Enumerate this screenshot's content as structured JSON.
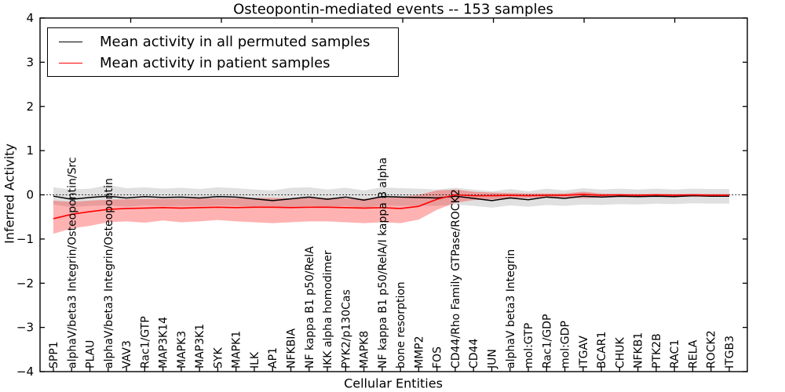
{
  "figure": {
    "title": "Osteopontin-mediated events -- 153 samples",
    "xlabel": "Cellular Entities",
    "ylabel": "Inferred Activity"
  },
  "legend": {
    "entries": [
      {
        "label": "Mean activity in all permuted samples",
        "color": "#000000"
      },
      {
        "label": "Mean activity in patient samples",
        "color": "#ff0000"
      }
    ]
  },
  "colors": {
    "permuted_line": "#000000",
    "patient_line": "#ff0000",
    "permuted_band": "#000000",
    "patient_band": "#ff0000",
    "axis": "#000000",
    "background": "#ffffff"
  },
  "chart_data": {
    "type": "line",
    "title": "Osteopontin-mediated events -- 153 samples",
    "xlabel": "Cellular Entities",
    "ylabel": "Inferred Activity",
    "ylim": [
      -4,
      4
    ],
    "yticks": [
      -4,
      -3,
      -2,
      -1,
      0,
      1,
      2,
      3,
      4
    ],
    "ytick_labels": [
      "−4",
      "−3",
      "−2",
      "−1",
      "0",
      "1",
      "2",
      "3",
      "4"
    ],
    "grid": false,
    "legend_position": "upper left",
    "zero_line_style": "dotted",
    "x_axis_top_ticks": {
      "values": [
        5,
        10,
        15,
        20,
        25,
        30,
        35
      ],
      "range": [
        0,
        39
      ]
    },
    "categories": [
      "SPP1",
      "alphaV/beta3 Integrin/Osteopontin/Src",
      "PLAU",
      "alphaV/beta3 Integrin/Osteopontin",
      "VAV3",
      "Rac1/GTP",
      "MAP3K14",
      "MAPK3",
      "MAP3K1",
      "SYK",
      "MAPK1",
      "ILK",
      "AP1",
      "NFKBIA",
      "NF kappa B1 p50/RelA",
      "IKK alpha homodimer",
      "PYK2/p130Cas",
      "MAPK8",
      "NF kappa B1 p50/RelA/I kappa B alpha",
      "bone resorption",
      "MMP2",
      "FOS",
      "CD44/Rho Family GTPase/ROCK2",
      "CD44",
      "JUN",
      "alphaV beta3 Integrin",
      "mol:GTP",
      "Rac1/GDP",
      "mol:GDP",
      "ITGAV",
      "BCAR1",
      "CHUK",
      "NFKB1",
      "PTK2B",
      "RAC1",
      "RELA",
      "ROCK2",
      "ITGB3"
    ],
    "series": [
      {
        "name": "Mean activity in all permuted samples",
        "color": "#000000",
        "width": 1.5,
        "values": [
          -0.03,
          -0.1,
          -0.06,
          -0.03,
          -0.07,
          -0.04,
          -0.06,
          -0.05,
          -0.07,
          -0.04,
          -0.05,
          -0.09,
          -0.13,
          -0.09,
          -0.05,
          -0.1,
          -0.05,
          -0.12,
          -0.04,
          -0.05,
          -0.06,
          -0.07,
          -0.03,
          -0.08,
          -0.13,
          -0.07,
          -0.11,
          -0.05,
          -0.08,
          -0.03,
          -0.05,
          -0.03,
          -0.04,
          -0.03,
          -0.04,
          -0.02,
          -0.03,
          -0.03
        ]
      },
      {
        "name": "Mean activity in patient samples",
        "color": "#ff0000",
        "width": 1.6,
        "values": [
          -0.54,
          -0.44,
          -0.38,
          -0.33,
          -0.31,
          -0.3,
          -0.29,
          -0.3,
          -0.29,
          -0.28,
          -0.29,
          -0.28,
          -0.28,
          -0.29,
          -0.28,
          -0.28,
          -0.29,
          -0.3,
          -0.29,
          -0.31,
          -0.26,
          -0.1,
          0.0,
          -0.02,
          -0.02,
          -0.01,
          -0.02,
          -0.01,
          -0.01,
          0.01,
          -0.01,
          0.0,
          -0.01,
          0.0,
          -0.01,
          0.0,
          -0.01,
          -0.01
        ]
      }
    ],
    "bands": [
      {
        "name": "permuted-activity-range",
        "color": "#000000",
        "opacity": 0.12,
        "upper": [
          0.17,
          0.12,
          0.14,
          0.22,
          0.15,
          0.17,
          0.14,
          0.16,
          0.13,
          0.17,
          0.15,
          0.12,
          0.1,
          0.16,
          0.17,
          0.12,
          0.16,
          0.1,
          0.17,
          0.15,
          0.14,
          0.12,
          0.16,
          0.12,
          0.08,
          0.13,
          0.08,
          0.14,
          0.1,
          0.15,
          0.12,
          0.14,
          0.12,
          0.14,
          0.12,
          0.14,
          0.13,
          0.13
        ],
        "lower": [
          -0.22,
          -0.28,
          -0.25,
          -0.24,
          -0.27,
          -0.24,
          -0.26,
          -0.25,
          -0.26,
          -0.24,
          -0.25,
          -0.27,
          -0.3,
          -0.28,
          -0.25,
          -0.28,
          -0.25,
          -0.3,
          -0.24,
          -0.25,
          -0.25,
          -0.25,
          -0.22,
          -0.25,
          -0.29,
          -0.24,
          -0.27,
          -0.23,
          -0.25,
          -0.22,
          -0.23,
          -0.21,
          -0.22,
          -0.2,
          -0.21,
          -0.19,
          -0.2,
          -0.2
        ]
      },
      {
        "name": "patient-activity-range",
        "color": "#ff0000",
        "opacity": 0.3,
        "upper": [
          -0.13,
          -0.16,
          -0.13,
          -0.11,
          -0.1,
          -0.09,
          -0.09,
          -0.09,
          -0.08,
          -0.08,
          -0.08,
          -0.07,
          -0.07,
          -0.08,
          -0.07,
          -0.07,
          -0.08,
          -0.09,
          -0.07,
          -0.05,
          0.0,
          0.1,
          0.12,
          0.07,
          0.05,
          0.04,
          0.03,
          0.03,
          0.03,
          0.07,
          0.03,
          0.02,
          0.02,
          0.02,
          0.02,
          0.02,
          0.02,
          0.02
        ],
        "lower": [
          -0.88,
          -0.76,
          -0.7,
          -0.62,
          -0.6,
          -0.63,
          -0.58,
          -0.62,
          -0.6,
          -0.57,
          -0.6,
          -0.62,
          -0.64,
          -0.62,
          -0.6,
          -0.6,
          -0.62,
          -0.64,
          -0.62,
          -0.64,
          -0.56,
          -0.34,
          -0.18,
          -0.12,
          -0.1,
          -0.07,
          -0.07,
          -0.06,
          -0.06,
          -0.08,
          -0.06,
          -0.05,
          -0.05,
          -0.04,
          -0.04,
          -0.04,
          -0.04,
          -0.04
        ]
      }
    ]
  }
}
